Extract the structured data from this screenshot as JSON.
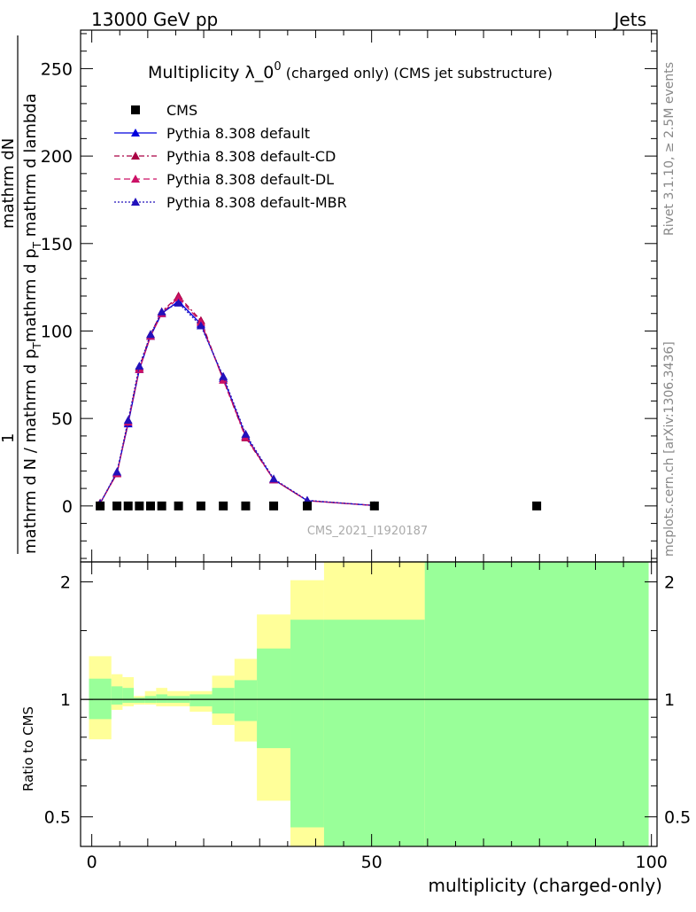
{
  "header": {
    "left": "13000 GeV pp",
    "right": "Jets"
  },
  "side_labels": {
    "rivet": "Rivet 3.1.10, ≥ 2.5M events",
    "mcplots": "mcplots.cern.ch [arXiv:1306.3436]"
  },
  "watermark": "CMS_2021_I1920187",
  "chart_data": [
    {
      "type": "line",
      "title_main": "Multiplicity λ_0",
      "title_sup": "0",
      "title_rest": " (charged only) (CMS jet substructure)",
      "xlabel": "multiplicity (charged-only)",
      "ylabel_numer_a": "1",
      "ylabel_numer_b": "mathrm dN",
      "ylabel_denom": "mathrm d N / mathrm d p",
      "ylabel_denom_b": "mathrm d p",
      "ylabel_denom_c": " mathrm d lambda",
      "ylabel_sub": "T",
      "xlim": [
        -2,
        101
      ],
      "ylim": [
        -32,
        272
      ],
      "yticks": [
        "0",
        "50",
        "100",
        "150",
        "200",
        "250"
      ],
      "xticks": [
        "0",
        "50",
        "100"
      ],
      "legend": [
        "CMS",
        "Pythia 8.308 default",
        "Pythia 8.308 default-CD",
        "Pythia 8.308 default-DL",
        "Pythia 8.308 default-MBR"
      ],
      "colors": {
        "data": "#000000",
        "default": "#0000dd",
        "cd": "#aa0044",
        "dl": "#cc1166",
        "mbr": "#2211bb"
      },
      "data_points": {
        "x": [
          1.5,
          4.5,
          6.5,
          8.5,
          10.5,
          12.5,
          15.5,
          19.5,
          23.5,
          27.5,
          32.5,
          38.5,
          50.5,
          79.5
        ],
        "y": [
          0,
          0,
          0,
          0,
          0,
          0,
          0,
          0,
          0,
          0,
          0,
          0,
          0,
          0
        ]
      },
      "series": [
        {
          "name": "Pythia 8.308 default",
          "x": [
            1.5,
            4.5,
            6.5,
            8.5,
            10.5,
            12.5,
            15.5,
            19.5,
            23.5,
            27.5,
            32.5,
            38.5,
            50.5
          ],
          "y": [
            1.5,
            19,
            47,
            78,
            97,
            110,
            117,
            104,
            73,
            40,
            15,
            3,
            0.2
          ]
        },
        {
          "name": "Pythia 8.308 default-CD",
          "x": [
            1.5,
            4.5,
            6.5,
            8.5,
            10.5,
            12.5,
            15.5,
            19.5,
            23.5,
            27.5,
            32.5,
            38.5,
            50.5
          ],
          "y": [
            1.6,
            18.5,
            48,
            79,
            98,
            111,
            120,
            106,
            72,
            39,
            15,
            3,
            0.2
          ]
        },
        {
          "name": "Pythia 8.308 default-DL",
          "x": [
            1.5,
            4.5,
            6.5,
            8.5,
            10.5,
            12.5,
            15.5,
            19.5,
            23.5,
            27.5,
            32.5,
            38.5,
            50.5
          ],
          "y": [
            1.6,
            18.5,
            48,
            78,
            97,
            110,
            119,
            105,
            72,
            39.5,
            15,
            3,
            0.2
          ]
        },
        {
          "name": "Pythia 8.308 default-MBR",
          "x": [
            1.5,
            4.5,
            6.5,
            8.5,
            10.5,
            12.5,
            15.5,
            19.5,
            23.5,
            27.5,
            32.5,
            38.5,
            50.5
          ],
          "y": [
            1.4,
            19.5,
            49,
            80,
            98,
            111,
            116,
            103,
            74,
            41,
            15.5,
            3.2,
            0.2
          ]
        }
      ]
    },
    {
      "type": "area",
      "ylabel": "Ratio to CMS",
      "ylim": [
        0.42,
        2.25
      ],
      "yticks": [
        "0.5",
        "1",
        "2"
      ],
      "reference": 1,
      "bands": {
        "colors": {
          "outer": "#ffff99",
          "inner": "#99ff99"
        },
        "edges": [
          -0.5,
          3.5,
          5.5,
          7.5,
          9.5,
          11.5,
          13.5,
          17.5,
          21.5,
          25.5,
          29.5,
          35.5,
          41.5,
          59.5,
          99.5
        ],
        "outer_lo": [
          0.79,
          0.94,
          0.96,
          0.97,
          0.97,
          0.96,
          0.96,
          0.93,
          0.86,
          0.78,
          0.55,
          0.38,
          0.38,
          0.38
        ],
        "outer_hi": [
          1.29,
          1.16,
          1.14,
          1.02,
          1.05,
          1.07,
          1.05,
          1.05,
          1.15,
          1.27,
          1.65,
          2.02,
          2.3,
          2.3
        ],
        "inner_lo": [
          0.89,
          0.97,
          0.98,
          0.98,
          0.98,
          0.98,
          0.98,
          0.96,
          0.92,
          0.88,
          0.75,
          0.47,
          0.38,
          0.38
        ],
        "inner_hi": [
          1.13,
          1.08,
          1.07,
          1.01,
          1.02,
          1.03,
          1.02,
          1.03,
          1.07,
          1.12,
          1.35,
          1.6,
          1.6,
          2.3
        ]
      }
    }
  ]
}
